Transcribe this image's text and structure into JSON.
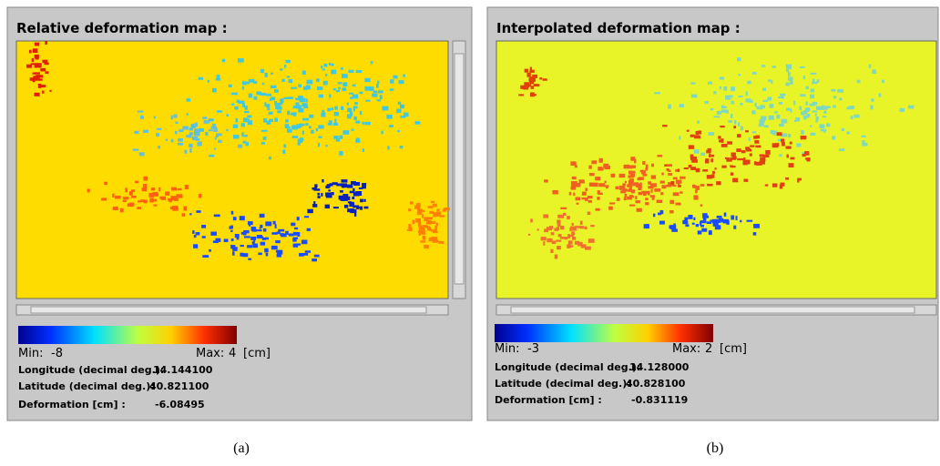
{
  "panels": [
    {
      "title": "Relative deformation map :",
      "min_label": "Min:",
      "min_value": "-8",
      "max_label": "Max:",
      "max_value": "4",
      "unit": "[cm]",
      "longitude_label": "Longitude (decimal deg.):",
      "longitude_value": "14.144100",
      "latitude_label": "Latitude (decimal deg.):",
      "latitude_value": "40.821100",
      "deformation_label": "Deformation [cm] :",
      "deformation_value": "-6.08495",
      "caption": "(a)"
    },
    {
      "title": "Interpolated deformation map :",
      "min_label": "Min:",
      "min_value": "-3",
      "max_label": "Max:",
      "max_value": "2",
      "unit": "[cm]",
      "longitude_label": "Longitude (decimal deg.):",
      "longitude_value": "14.128000",
      "latitude_label": "Latitude (decimal deg.):",
      "latitude_value": "40.828100",
      "deformation_label": "Deformation [cm] :",
      "deformation_value": "-0.831119",
      "caption": "(b)"
    }
  ]
}
